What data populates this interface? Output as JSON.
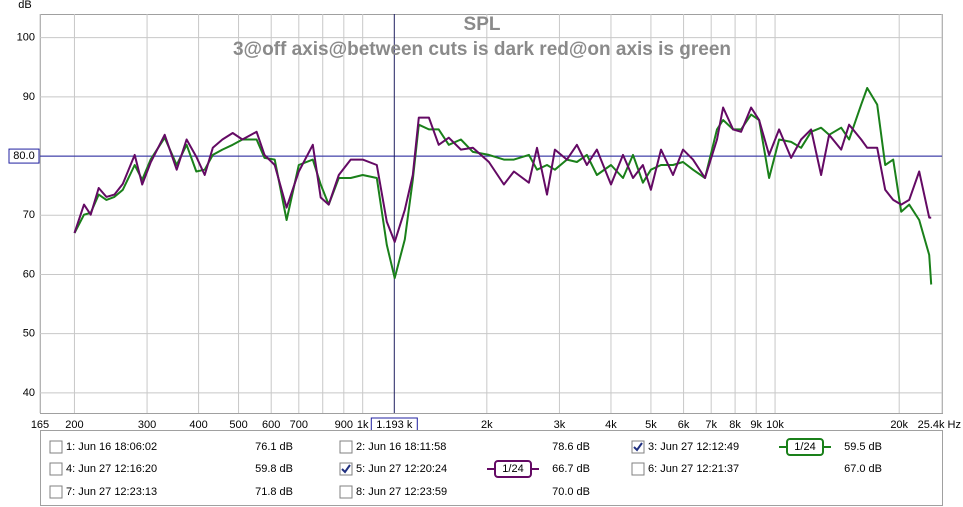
{
  "chart_data": {
    "type": "line",
    "title": "SPL",
    "subtitle": "3@off axis@between cuts is dark red@on axis is green",
    "y_label": "dB",
    "log_x": true,
    "grid": true,
    "xlim": [
      165,
      25400
    ],
    "ylim": [
      36.6,
      104
    ],
    "yticks": [
      40,
      50,
      60,
      70,
      80,
      90,
      100
    ],
    "xticks": [
      165,
      200,
      300,
      400,
      500,
      600,
      700,
      {
        "value": 800,
        "label": null
      },
      900,
      {
        "value": 1000,
        "label": "1k"
      },
      {
        "value": 2000,
        "label": "2k"
      },
      {
        "value": 3000,
        "label": "3k"
      },
      {
        "value": 4000,
        "label": "4k"
      },
      {
        "value": 5000,
        "label": "5k"
      },
      {
        "value": 6000,
        "label": "6k"
      },
      {
        "value": 7000,
        "label": "7k"
      },
      {
        "value": 8000,
        "label": "8k"
      },
      {
        "value": 9000,
        "label": "9k"
      },
      {
        "value": 10000,
        "label": "10k"
      },
      {
        "value": 20000,
        "label": "20k"
      },
      {
        "value": 25400,
        "label": "25.4k Hz"
      }
    ],
    "cursor": {
      "x": 1193,
      "label": "1.193 k"
    },
    "marker": {
      "value": 80,
      "label": "80.0"
    },
    "x": [
      200,
      211,
      219,
      229,
      239,
      250,
      262,
      280,
      292,
      306,
      331,
      354,
      374,
      395,
      414,
      433,
      457,
      484,
      511,
      553,
      578,
      612,
      654,
      700,
      757,
      791,
      827,
      875,
      935,
      1000,
      1082,
      1144,
      1196,
      1265,
      1323,
      1368,
      1447,
      1529,
      1617,
      1730,
      1850,
      2023,
      2200,
      2327,
      2530,
      2646,
      2798,
      2925,
      3128,
      3308,
      3498,
      3698,
      4000,
      4278,
      4524,
      4782,
      5000,
      5288,
      5657,
      5982,
      6325,
      6764,
      7233,
      7480,
      7910,
      8271,
      8746,
      9145,
      9671,
      10228,
      10938,
      11566,
      12231,
      12935,
      13526,
      14467,
      15124,
      16175,
      16725,
      17685,
      18493,
      19340,
      20226,
      21152,
      22369,
      23654,
      23910
    ],
    "series": [
      {
        "name": "3: Jun 27 12:12:49",
        "color": "#1a801a",
        "checked": true,
        "smoothing": "1/24",
        "reading": "59.5 dB",
        "values": [
          67.0,
          70.1,
          70.4,
          73.5,
          72.6,
          73.1,
          74.3,
          78.5,
          76.0,
          79.4,
          83.1,
          78.5,
          81.9,
          77.4,
          77.7,
          80.2,
          81.1,
          81.9,
          82.8,
          82.8,
          79.7,
          79.4,
          69.2,
          78.5,
          79.4,
          75.2,
          71.8,
          76.3,
          76.3,
          76.8,
          76.3,
          65.0,
          59.4,
          65.9,
          76.0,
          85.3,
          84.5,
          84.5,
          81.9,
          82.8,
          80.7,
          80.2,
          79.4,
          79.4,
          80.2,
          77.7,
          78.5,
          77.7,
          79.4,
          79.0,
          80.2,
          76.8,
          78.5,
          76.3,
          80.2,
          75.5,
          77.7,
          78.5,
          78.5,
          79.0,
          77.7,
          76.3,
          84.5,
          86.1,
          84.5,
          84.5,
          87.0,
          86.1,
          76.3,
          82.8,
          82.4,
          81.4,
          84.1,
          84.8,
          83.6,
          84.8,
          82.8,
          88.7,
          91.5,
          88.7,
          78.5,
          79.4,
          70.6,
          71.8,
          69.2,
          63.3,
          58.3
        ]
      },
      {
        "name": "5: Jun 27 12:20:24",
        "color": "#640a64",
        "checked": true,
        "smoothing": "1/24",
        "reading": "66.7 dB",
        "values": [
          67.0,
          71.8,
          70.1,
          74.6,
          73.1,
          73.5,
          75.3,
          80.2,
          75.2,
          78.9,
          83.6,
          77.7,
          82.8,
          79.9,
          76.8,
          81.4,
          82.8,
          83.9,
          82.8,
          84.1,
          80.2,
          78.5,
          71.3,
          77.4,
          81.9,
          73.0,
          71.8,
          76.8,
          79.4,
          79.4,
          78.5,
          68.9,
          65.5,
          70.9,
          76.8,
          86.5,
          86.5,
          81.9,
          83.1,
          81.1,
          81.4,
          79.0,
          75.2,
          77.4,
          75.5,
          81.4,
          73.5,
          81.1,
          79.4,
          81.9,
          78.5,
          81.1,
          75.2,
          80.2,
          76.3,
          78.5,
          74.3,
          81.1,
          76.8,
          81.1,
          79.4,
          76.3,
          82.8,
          88.2,
          84.5,
          84.1,
          88.2,
          86.1,
          80.2,
          84.5,
          79.7,
          82.8,
          84.5,
          76.8,
          83.6,
          81.1,
          85.3,
          82.8,
          81.4,
          81.4,
          74.3,
          72.6,
          71.8,
          72.6,
          77.4,
          69.6,
          69.6
        ]
      }
    ],
    "hidden": [
      {
        "name": "1: Jun 16 18:06:02",
        "color": "#d0203c",
        "checked": false,
        "reading": "76.1 dB"
      },
      {
        "name": "2: Jun 16 18:11:58",
        "color": "#b03c9a",
        "checked": false,
        "reading": "78.6 dB"
      },
      {
        "name": "4: Jun 27 12:16:20",
        "color": "#4848b0",
        "checked": false,
        "reading": "59.8 dB"
      },
      {
        "name": "6: Jun 27 12:21:37",
        "color": "#2a7080",
        "checked": false,
        "reading": "67.0 dB"
      },
      {
        "name": "7: Jun 27 12:23:13",
        "color": "#c89a00",
        "checked": false,
        "reading": "71.8 dB"
      },
      {
        "name": "8: Jun 27 12:23:59",
        "color": "#20a040",
        "checked": false,
        "reading": "70.0 dB"
      }
    ]
  }
}
